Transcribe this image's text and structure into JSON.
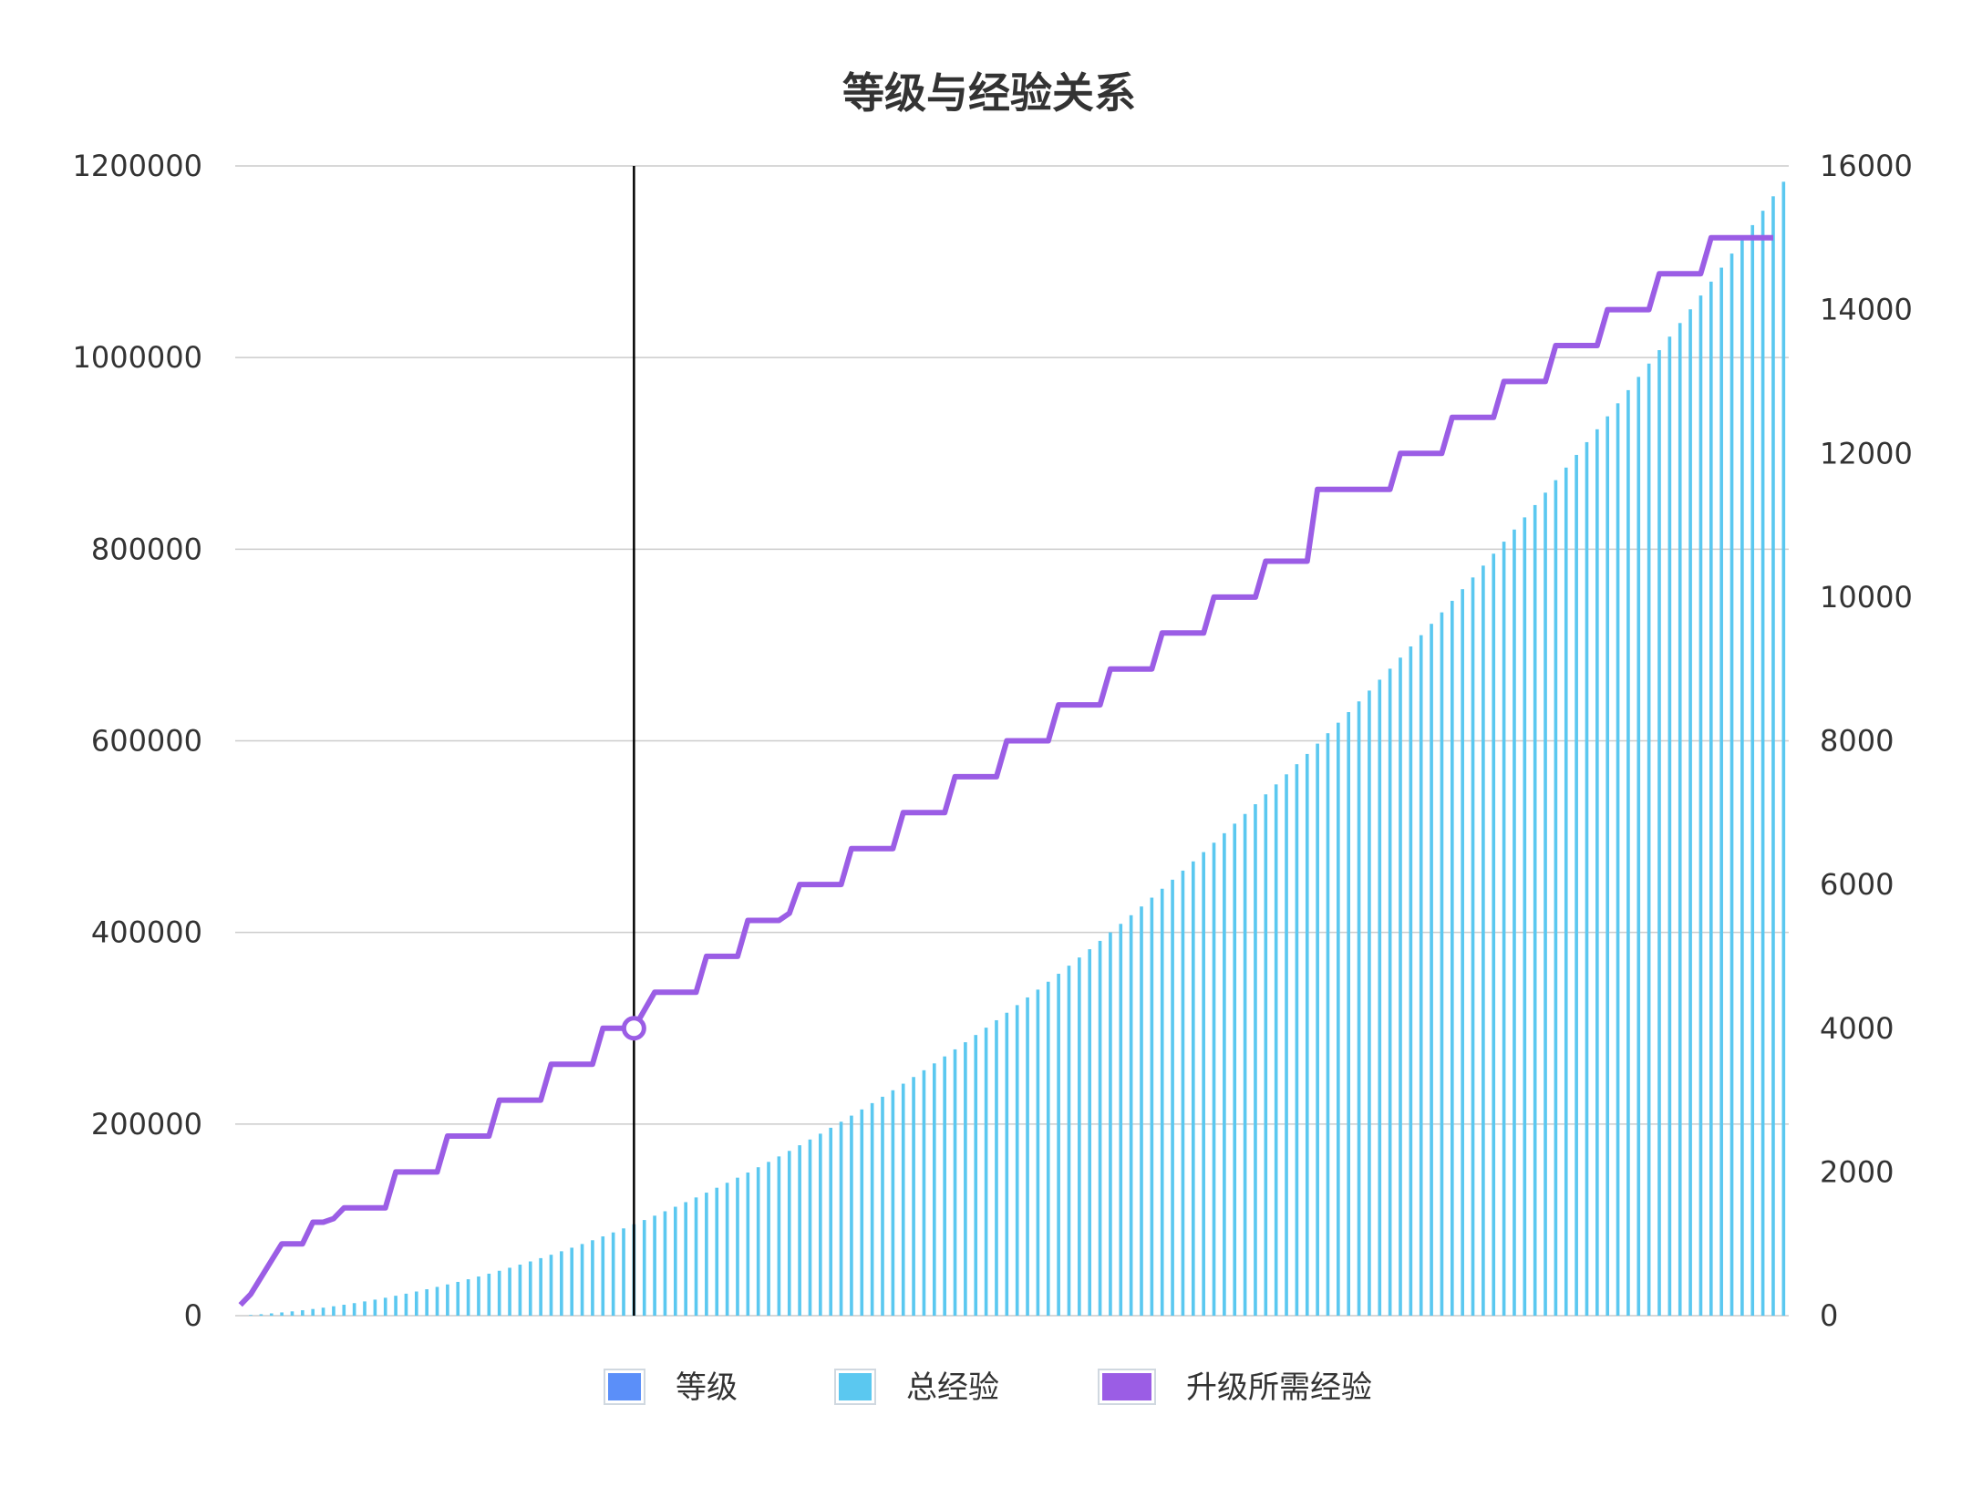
{
  "chart_data": {
    "type": "bar+line",
    "title": "等级与经验关系",
    "levels": {
      "start": 1,
      "end": 150
    },
    "left_axis": {
      "min": 0,
      "max": 1200000,
      "ticks": [
        "0",
        "200000",
        "400000",
        "600000",
        "800000",
        "1000000",
        "1200000"
      ]
    },
    "right_axis": {
      "min": 0,
      "max": 16000,
      "ticks": [
        "0",
        "2000",
        "4000",
        "6000",
        "8000",
        "10000",
        "12000",
        "14000",
        "16000"
      ]
    },
    "series": [
      {
        "name": "等级",
        "type": "bar",
        "axis": "left",
        "color": "#5b8ff9",
        "values_visible": false
      },
      {
        "name": "总经验",
        "type": "bar",
        "axis": "left",
        "color": "#5bc8f0",
        "shape": "quadratic",
        "sample_points": [
          [
            1,
            0
          ],
          [
            20,
            20000
          ],
          [
            39,
            84000
          ],
          [
            60,
            200000
          ],
          [
            90,
            455000
          ],
          [
            120,
            790000
          ],
          [
            150,
            1170000
          ]
        ]
      },
      {
        "name": "升级所需经验",
        "type": "line",
        "axis": "right",
        "color": "#9b5de5",
        "steps": [
          [
            1,
            150
          ],
          [
            2,
            300
          ],
          [
            5,
            1000
          ],
          [
            7,
            1000
          ],
          [
            8,
            1300
          ],
          [
            9,
            1300
          ],
          [
            10,
            1350
          ],
          [
            11,
            1500
          ],
          [
            15,
            1500
          ],
          [
            16,
            2000
          ],
          [
            20,
            2000
          ],
          [
            21,
            2500
          ],
          [
            25,
            2500
          ],
          [
            26,
            3000
          ],
          [
            30,
            3000
          ],
          [
            31,
            3500
          ],
          [
            35,
            3500
          ],
          [
            36,
            4000
          ],
          [
            39,
            4000
          ],
          [
            41,
            4500
          ],
          [
            45,
            4500
          ],
          [
            46,
            5000
          ],
          [
            49,
            5000
          ],
          [
            50,
            5500
          ],
          [
            53,
            5500
          ],
          [
            54,
            5600
          ],
          [
            55,
            6000
          ],
          [
            59,
            6000
          ],
          [
            60,
            6500
          ],
          [
            64,
            6500
          ],
          [
            65,
            7000
          ],
          [
            69,
            7000
          ],
          [
            70,
            7500
          ],
          [
            74,
            7500
          ],
          [
            75,
            8000
          ],
          [
            79,
            8000
          ],
          [
            80,
            8500
          ],
          [
            84,
            8500
          ],
          [
            85,
            9000
          ],
          [
            89,
            9000
          ],
          [
            90,
            9500
          ],
          [
            94,
            9500
          ],
          [
            95,
            10000
          ],
          [
            99,
            10000
          ],
          [
            100,
            10500
          ],
          [
            104,
            10500
          ],
          [
            105,
            11500
          ],
          [
            112,
            11500
          ],
          [
            113,
            12000
          ],
          [
            117,
            12000
          ],
          [
            118,
            12500
          ],
          [
            122,
            12500
          ],
          [
            123,
            13000
          ],
          [
            127,
            13000
          ],
          [
            128,
            13500
          ],
          [
            132,
            13500
          ],
          [
            133,
            14000
          ],
          [
            137,
            14000
          ],
          [
            138,
            14500
          ],
          [
            142,
            14500
          ],
          [
            143,
            15000
          ],
          [
            149,
            15000
          ]
        ]
      }
    ],
    "hover_marker": {
      "level": 39,
      "value": 4000
    },
    "legend": {
      "position": "bottom",
      "items": [
        "等级",
        "总经验",
        "升级所需经验"
      ]
    },
    "grid": true
  }
}
